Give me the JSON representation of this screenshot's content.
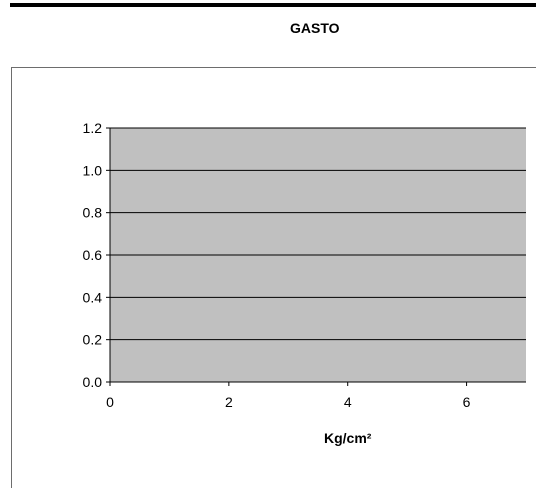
{
  "sheet": {
    "title": "GASTO"
  },
  "colors": {
    "plot_area": "#c0c0c0",
    "gridline": "#000000",
    "frame": "#6d6d6d",
    "text": "#000000"
  },
  "chart_data": {
    "type": "scatter",
    "title": "",
    "xlabel": "Kg/cm²",
    "ylabel": "",
    "xlim": [
      0,
      7
    ],
    "ylim": [
      0,
      1.2
    ],
    "x_ticks": [
      0,
      2,
      4,
      6
    ],
    "x_tick_labels": [
      "0",
      "2",
      "4",
      "6"
    ],
    "y_ticks": [
      0,
      0.2,
      0.4,
      0.6,
      0.8,
      1.0,
      1.2
    ],
    "y_tick_labels": [
      "0.0",
      "0.2",
      "0.4",
      "0.6",
      "0.8",
      "1.0",
      "1.2"
    ],
    "grid": true,
    "series": []
  }
}
